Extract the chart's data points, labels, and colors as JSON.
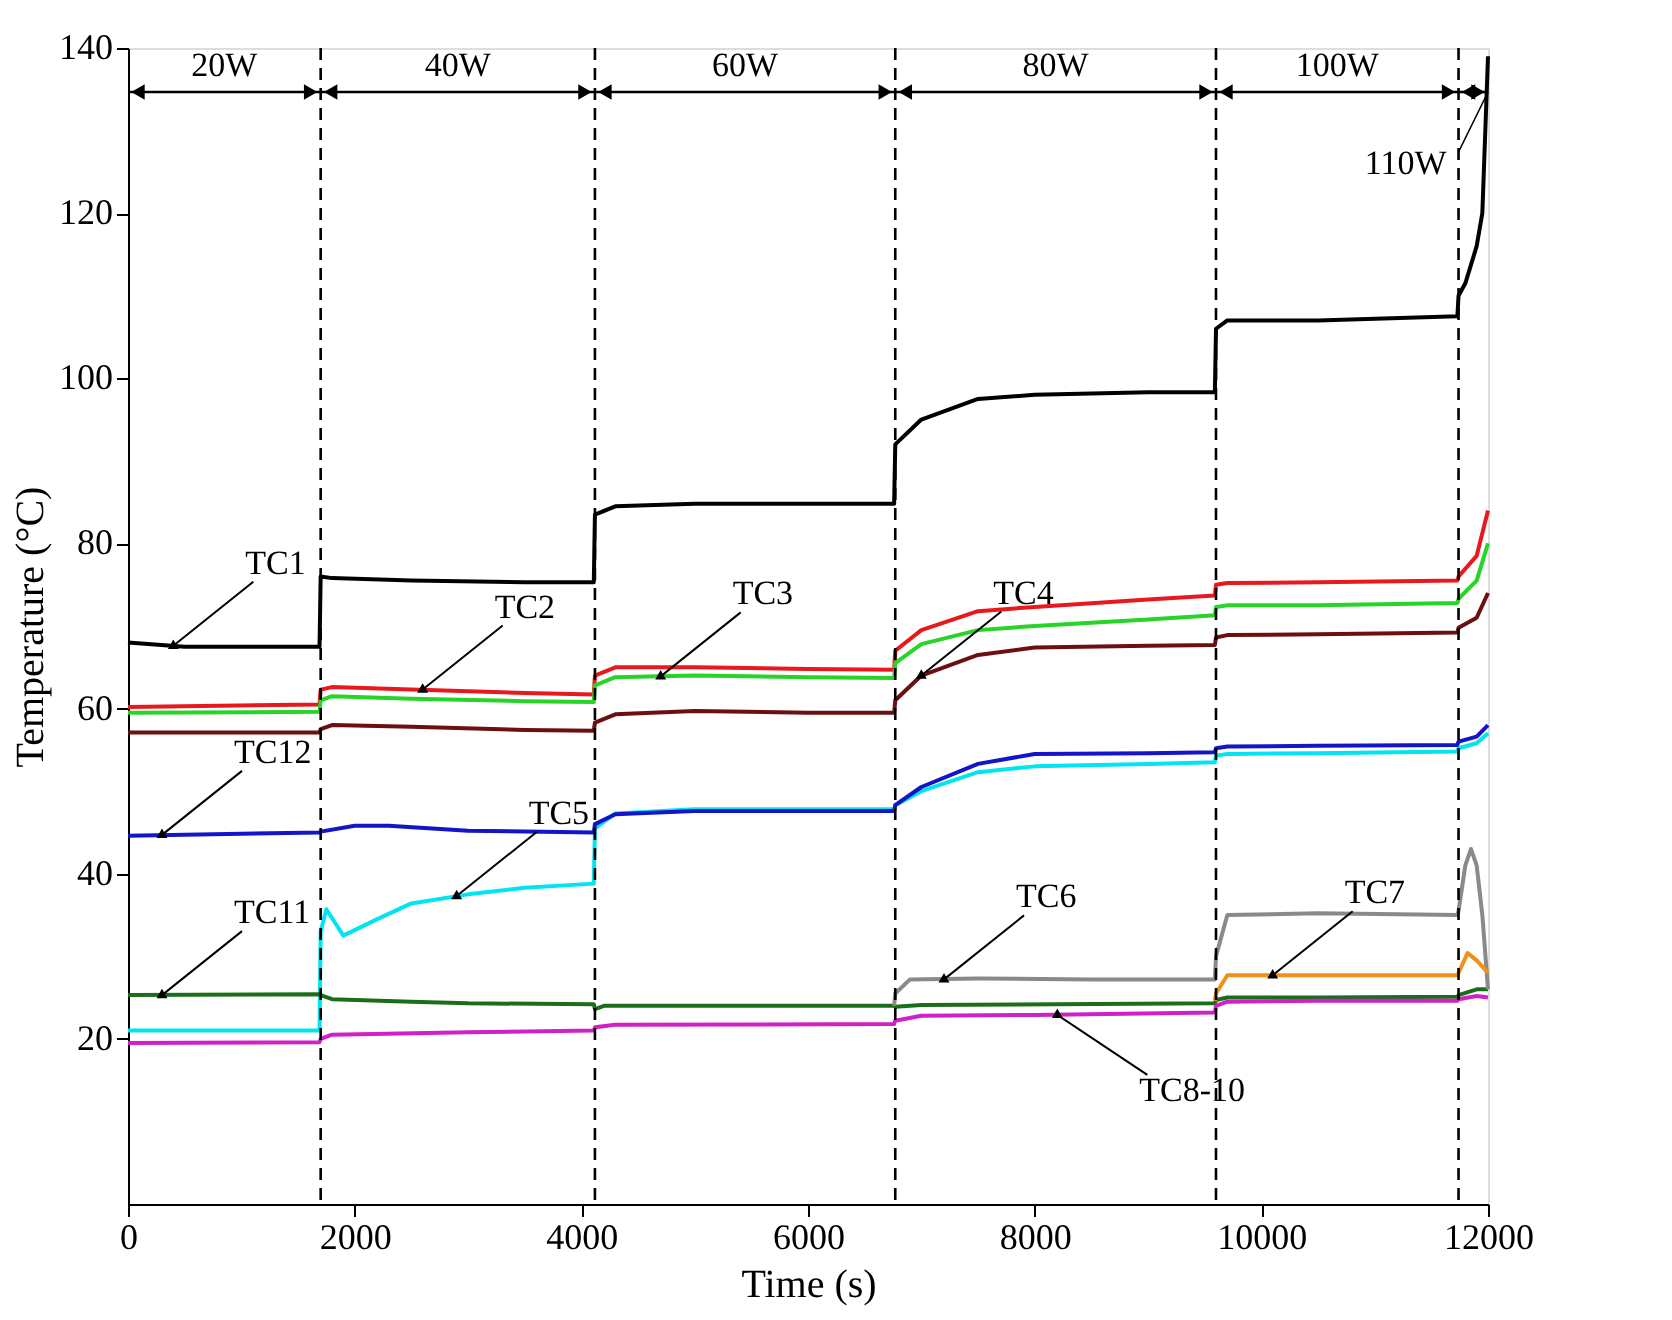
{
  "chart_data": {
    "type": "line",
    "xlabel": "Time (s)",
    "ylabel": "Temperature (°C)",
    "xlim": [
      0,
      12000
    ],
    "xticks": [
      0,
      2000,
      4000,
      6000,
      8000,
      10000,
      12000
    ],
    "ylim": [
      0,
      140
    ],
    "yticks": [
      20,
      40,
      60,
      80,
      100,
      120,
      140
    ],
    "grid": false,
    "legend": false,
    "marker": "none",
    "line_style": "solid",
    "series": [
      {
        "color": "#000000",
        "x": [
          0,
          500,
          1690,
          1700,
          1800,
          2500,
          3500,
          4110,
          4120,
          4300,
          5000,
          6000,
          6760,
          6770,
          7000,
          7500,
          8000,
          9000,
          9590,
          9600,
          9700,
          10500,
          11730,
          11740,
          11800,
          11900,
          11950,
          12000
        ],
        "values": [
          68,
          67.5,
          67.5,
          76,
          75.8,
          75.5,
          75.3,
          75.3,
          83.5,
          84.5,
          84.8,
          84.8,
          84.8,
          92,
          95,
          97.5,
          98,
          98.3,
          98.3,
          106,
          107,
          107,
          107.5,
          110,
          111.5,
          116,
          120,
          139
        ]
      },
      {
        "color": "#e8191e",
        "x": [
          0,
          1690,
          1700,
          1800,
          2500,
          3500,
          4110,
          4120,
          4300,
          5000,
          6000,
          6760,
          6770,
          7000,
          7500,
          8000,
          9000,
          9590,
          9600,
          9700,
          10500,
          11730,
          11740,
          11900,
          12000
        ],
        "values": [
          60.2,
          60.5,
          62.3,
          62.6,
          62.3,
          61.9,
          61.7,
          64,
          65,
          65,
          64.8,
          64.7,
          67,
          69.5,
          71.8,
          72.3,
          73.2,
          73.7,
          75,
          75.2,
          75.3,
          75.5,
          76,
          78.5,
          84
        ]
      },
      {
        "color": "#27d427",
        "x": [
          0,
          1690,
          1700,
          1800,
          2500,
          3500,
          4110,
          4120,
          4300,
          5000,
          6000,
          6760,
          6770,
          7000,
          7500,
          8000,
          9000,
          9590,
          9600,
          9700,
          10500,
          11730,
          11740,
          11900,
          12000
        ],
        "values": [
          59.5,
          59.6,
          61,
          61.5,
          61.2,
          60.9,
          60.8,
          62.8,
          63.8,
          64,
          63.8,
          63.7,
          65.5,
          67.8,
          69.5,
          70,
          70.8,
          71.3,
          72.3,
          72.5,
          72.5,
          72.8,
          73.3,
          75.5,
          80
        ]
      },
      {
        "color": "#6b0f12",
        "x": [
          0,
          1690,
          1700,
          1800,
          2500,
          3500,
          4110,
          4120,
          4300,
          5000,
          6000,
          6760,
          6770,
          7000,
          7500,
          8000,
          9000,
          9590,
          9600,
          9700,
          10500,
          11730,
          11740,
          11900,
          12000
        ],
        "values": [
          57.1,
          57.1,
          57.5,
          58,
          57.8,
          57.4,
          57.3,
          58.3,
          59.3,
          59.7,
          59.5,
          59.5,
          61,
          64,
          66.5,
          67.4,
          67.6,
          67.7,
          68.6,
          68.9,
          69,
          69.2,
          69.8,
          71,
          74
        ]
      },
      {
        "color": "#00e5f0",
        "x": [
          0,
          1690,
          1700,
          1750,
          1900,
          2200,
          2500,
          3000,
          3500,
          4110,
          4120,
          4300,
          5000,
          6000,
          6760,
          6770,
          7000,
          7500,
          8000,
          9000,
          9590,
          9600,
          9700,
          10500,
          11730,
          11740,
          11900,
          12000
        ],
        "values": [
          21,
          21,
          33,
          35.7,
          32.5,
          34.5,
          36.4,
          37.5,
          38.3,
          38.8,
          45.5,
          47.3,
          47.8,
          47.8,
          47.8,
          48.3,
          50,
          52.3,
          53,
          53.3,
          53.5,
          54.3,
          54.5,
          54.6,
          54.8,
          55.2,
          55.8,
          57
        ]
      },
      {
        "color": "#1414c8",
        "x": [
          0,
          1690,
          1700,
          2000,
          2300,
          3000,
          4110,
          4120,
          4300,
          5000,
          6000,
          6760,
          6770,
          7000,
          7500,
          8000,
          9000,
          9590,
          9600,
          9700,
          10500,
          11730,
          11740,
          11900,
          12000
        ],
        "values": [
          44.6,
          45,
          45.1,
          45.8,
          45.8,
          45.2,
          45,
          46,
          47.2,
          47.6,
          47.6,
          47.6,
          48.3,
          50.5,
          53.3,
          54.5,
          54.6,
          54.7,
          55.2,
          55.4,
          55.5,
          55.6,
          56,
          56.6,
          58
        ]
      },
      {
        "color": "#1a6e1a",
        "x": [
          0,
          1690,
          1700,
          1800,
          2500,
          3000,
          4110,
          4120,
          4200,
          6760,
          6770,
          7000,
          9590,
          9600,
          9700,
          10500,
          11730,
          11740,
          11900,
          12000
        ],
        "values": [
          25.3,
          25.4,
          25.3,
          24.8,
          24.5,
          24.3,
          24.2,
          23.6,
          24,
          24,
          23.9,
          24.1,
          24.3,
          24.7,
          25,
          25,
          25.1,
          25.3,
          26,
          26
        ]
      },
      {
        "color": "#d020c8",
        "x": [
          0,
          1690,
          1700,
          1800,
          3000,
          4110,
          4120,
          4300,
          6760,
          6770,
          7000,
          8000,
          9590,
          9600,
          9700,
          10500,
          11730,
          11740,
          11900,
          12000
        ],
        "values": [
          19.5,
          19.6,
          20,
          20.5,
          20.8,
          21,
          21.4,
          21.7,
          21.8,
          22.2,
          22.8,
          22.9,
          23.2,
          24,
          24.5,
          24.6,
          24.6,
          24.8,
          25.2,
          25
        ]
      },
      {
        "color": "#8a8a8a",
        "x": [
          6760,
          6770,
          6900,
          7500,
          8500,
          9590,
          9600,
          9700,
          10500,
          11730,
          11740,
          11800,
          11850,
          11900,
          11950,
          12000
        ],
        "values": [
          24,
          25.5,
          27.2,
          27.3,
          27.2,
          27.2,
          30,
          35,
          35.2,
          35,
          35.5,
          41,
          43,
          41,
          35,
          26
        ]
      },
      {
        "color": "#f0901a",
        "x": [
          9590,
          9600,
          9700,
          10500,
          11730,
          11740,
          11820,
          11900,
          12000
        ],
        "values": [
          24.6,
          25.5,
          27.7,
          27.7,
          27.7,
          28,
          30.4,
          29.5,
          28
        ]
      }
    ],
    "ref_lines": [
      {
        "axis": "x",
        "value": 1700,
        "line_style": "dashed",
        "color": "#000000"
      },
      {
        "axis": "x",
        "value": 4120,
        "line_style": "dashed",
        "color": "#000000"
      },
      {
        "axis": "x",
        "value": 6770,
        "line_style": "dashed",
        "color": "#000000"
      },
      {
        "axis": "x",
        "value": 9600,
        "line_style": "dashed",
        "color": "#000000"
      },
      {
        "axis": "x",
        "value": 11740,
        "line_style": "dashed",
        "color": "#000000"
      }
    ],
    "annotations": [
      "20W",
      "40W",
      "60W",
      "80W",
      "100W",
      "110W",
      {
        "text": "TC1",
        "x": 400,
        "y": 67.6
      },
      {
        "text": "TC2",
        "x": 2600,
        "y": 62.3
      },
      {
        "text": "TC3",
        "x": 4700,
        "y": 63.9
      },
      {
        "text": "TC4",
        "x": 7000,
        "y": 64
      },
      {
        "text": "TC12",
        "x": 300,
        "y": 44.7
      },
      {
        "text": "TC5",
        "x": 2900,
        "y": 37.3
      },
      {
        "text": "TC11",
        "x": 300,
        "y": 25.3
      },
      {
        "text": "TC6",
        "x": 7200,
        "y": 27.2
      },
      {
        "text": "TC7",
        "x": 10100,
        "y": 27.7
      },
      {
        "text": "TC8-10",
        "x": 8200,
        "y": 22.9
      }
    ]
  }
}
